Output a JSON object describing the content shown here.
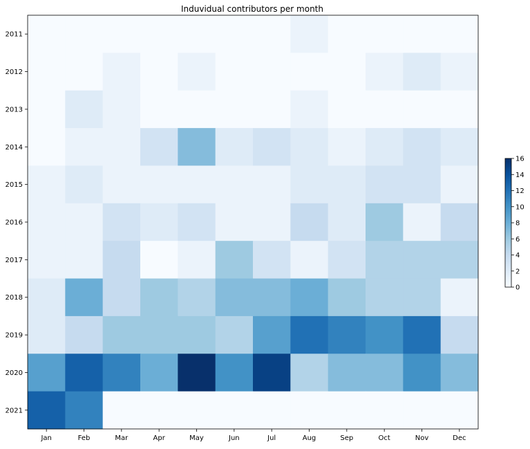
{
  "chart_data": {
    "type": "heatmap",
    "title": "Induvidual contributors per month",
    "x_categories": [
      "Jan",
      "Feb",
      "Mar",
      "Apr",
      "May",
      "Jun",
      "Jul",
      "Aug",
      "Sep",
      "Oct",
      "Nov",
      "Dec"
    ],
    "y_categories": [
      "2011",
      "2012",
      "2013",
      "2014",
      "2015",
      "2016",
      "2017",
      "2018",
      "2019",
      "2020",
      "2021"
    ],
    "values": [
      [
        0,
        0,
        0,
        0,
        0,
        0,
        0,
        1,
        0,
        0,
        0,
        0
      ],
      [
        0,
        0,
        1,
        0,
        1,
        0,
        0,
        0,
        0,
        1,
        2,
        1
      ],
      [
        0,
        2,
        1,
        0,
        0,
        0,
        0,
        1,
        0,
        0,
        0,
        0
      ],
      [
        0,
        1,
        1,
        3,
        7,
        2,
        3,
        2,
        1,
        2,
        3,
        2
      ],
      [
        1,
        2,
        1,
        1,
        1,
        1,
        1,
        2,
        2,
        3,
        3,
        1
      ],
      [
        1,
        1,
        3,
        2,
        3,
        1,
        1,
        4,
        2,
        6,
        1,
        4
      ],
      [
        1,
        1,
        4,
        0,
        1,
        6,
        3,
        1,
        3,
        5,
        5,
        5
      ],
      [
        2,
        8,
        4,
        6,
        5,
        7,
        7,
        8,
        6,
        5,
        5,
        1
      ],
      [
        2,
        4,
        6,
        6,
        6,
        5,
        9,
        12,
        11,
        10,
        12,
        4
      ],
      [
        9,
        13,
        11,
        8,
        16,
        10,
        15,
        5,
        7,
        7,
        10,
        7
      ],
      [
        13,
        11,
        0,
        0,
        0,
        0,
        0,
        0,
        0,
        0,
        0,
        0
      ]
    ],
    "colorbar": {
      "min": 0,
      "max": 16,
      "ticks": [
        0,
        2,
        4,
        6,
        8,
        10,
        12,
        14,
        16
      ],
      "colormap": "Blues",
      "placement": "right"
    },
    "grid": false
  }
}
